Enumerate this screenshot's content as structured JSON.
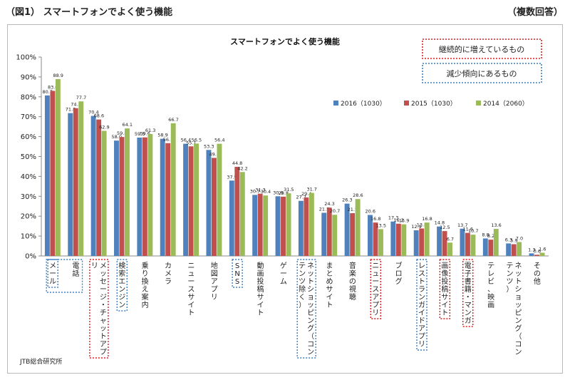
{
  "header": {
    "left": "（図1） スマートフォンでよく使う機能",
    "right": "（複数回答）"
  },
  "source": "JTB総合研究所",
  "box_increasing": "継続的に増えているもの",
  "box_decreasing": "減少傾向にあるもの",
  "colors": {
    "s2016": "#4f81bd",
    "s2015": "#c0504d",
    "s2014": "#9bbb59",
    "increasing_box": "#d91e1e",
    "decreasing_box": "#3d7fc4"
  },
  "chart_data": {
    "type": "bar",
    "title": "スマートフォンでよく使う機能",
    "ylim": [
      0,
      100
    ],
    "yticks": [
      "0%",
      "10%",
      "20%",
      "30%",
      "40%",
      "50%",
      "60%",
      "70%",
      "80%",
      "90%",
      "100%"
    ],
    "legend_position": "top",
    "grid": false,
    "categories": [
      "メール",
      "電話",
      "メッセージ・チャットアプリ",
      "検索エンジン",
      "乗り換え案内",
      "カメラ",
      "ニュースサイト",
      "地図アプリ",
      "SNS",
      "動画投稿サイト",
      "ゲーム",
      "ネットショッピング（コンテンツ除く）",
      "まとめサイト",
      "音楽の視聴",
      "ニュースアプリ",
      "ブログ",
      "レストランガイドアプリ",
      "画像投稿サイト",
      "電子書籍・マンガ",
      "テレビ、映画",
      "ネットショッピング（コンテンツ）",
      "その他"
    ],
    "series": [
      {
        "name": "2016（1030）",
        "values": [
          80.7,
          71.8,
          70.4,
          58.0,
          59.5,
          58.9,
          56.4,
          53.3,
          37.9,
          30.7,
          30.0,
          27.7,
          21.7,
          26.3,
          20.6,
          17.3,
          12.9,
          14.8,
          13.7,
          8.8,
          6.3,
          1.3
        ]
      },
      {
        "name": "2015（1030）",
        "values": [
          83.0,
          74.3,
          68.6,
          59.8,
          59.6,
          56.7,
          55.1,
          49.3,
          44.8,
          31.3,
          29.8,
          29.4,
          24.3,
          21.5,
          16.8,
          16.2,
          13.8,
          12.5,
          11.6,
          8.2,
          5.9,
          0.6
        ]
      },
      {
        "name": "2014（2060）",
        "values": [
          88.9,
          77.7,
          62.9,
          64.1,
          61.3,
          66.7,
          56.5,
          56.4,
          42.2,
          30.4,
          31.5,
          31.7,
          20.7,
          28.6,
          13.5,
          15.9,
          16.8,
          6.7,
          10.7,
          13.6,
          7.0,
          1.6
        ]
      }
    ],
    "value_labels": [
      [
        "80.7",
        "71.8",
        "70.4",
        "58.0",
        "59.5",
        "58.9",
        "56.4",
        "53.3",
        "37.9",
        "30.7",
        "30.0",
        "27.7",
        "21.7",
        "26.3",
        "20.6",
        "17.3",
        "12.9",
        "14.8",
        "13.7",
        "8.8",
        "6.3",
        "1.3"
      ],
      [
        "83.0",
        "74.3",
        "68.6",
        "59.8",
        "59.6",
        "56.7",
        "55.1",
        "49.3",
        "44.8",
        "31.3",
        "29.8",
        "29.4",
        "24.3",
        "21.5",
        "16.8",
        "16.2",
        "13.8",
        "12.5",
        "11.6",
        "8.2",
        "5.9",
        "0.6"
      ],
      [
        "88.9",
        "77.7",
        "62.9",
        "64.1",
        "61.3",
        "66.7",
        "56.5",
        "56.4",
        "42.2",
        "30.4",
        "31.5",
        "31.7",
        "20.7",
        "28.6",
        "13.5",
        "15.9",
        "16.8",
        "6.7",
        "10.7",
        "13.6",
        "7.0",
        "1.6"
      ]
    ],
    "increasing": [
      2,
      14,
      17,
      18
    ],
    "decreasing": [
      0,
      3,
      8,
      11,
      16
    ]
  }
}
